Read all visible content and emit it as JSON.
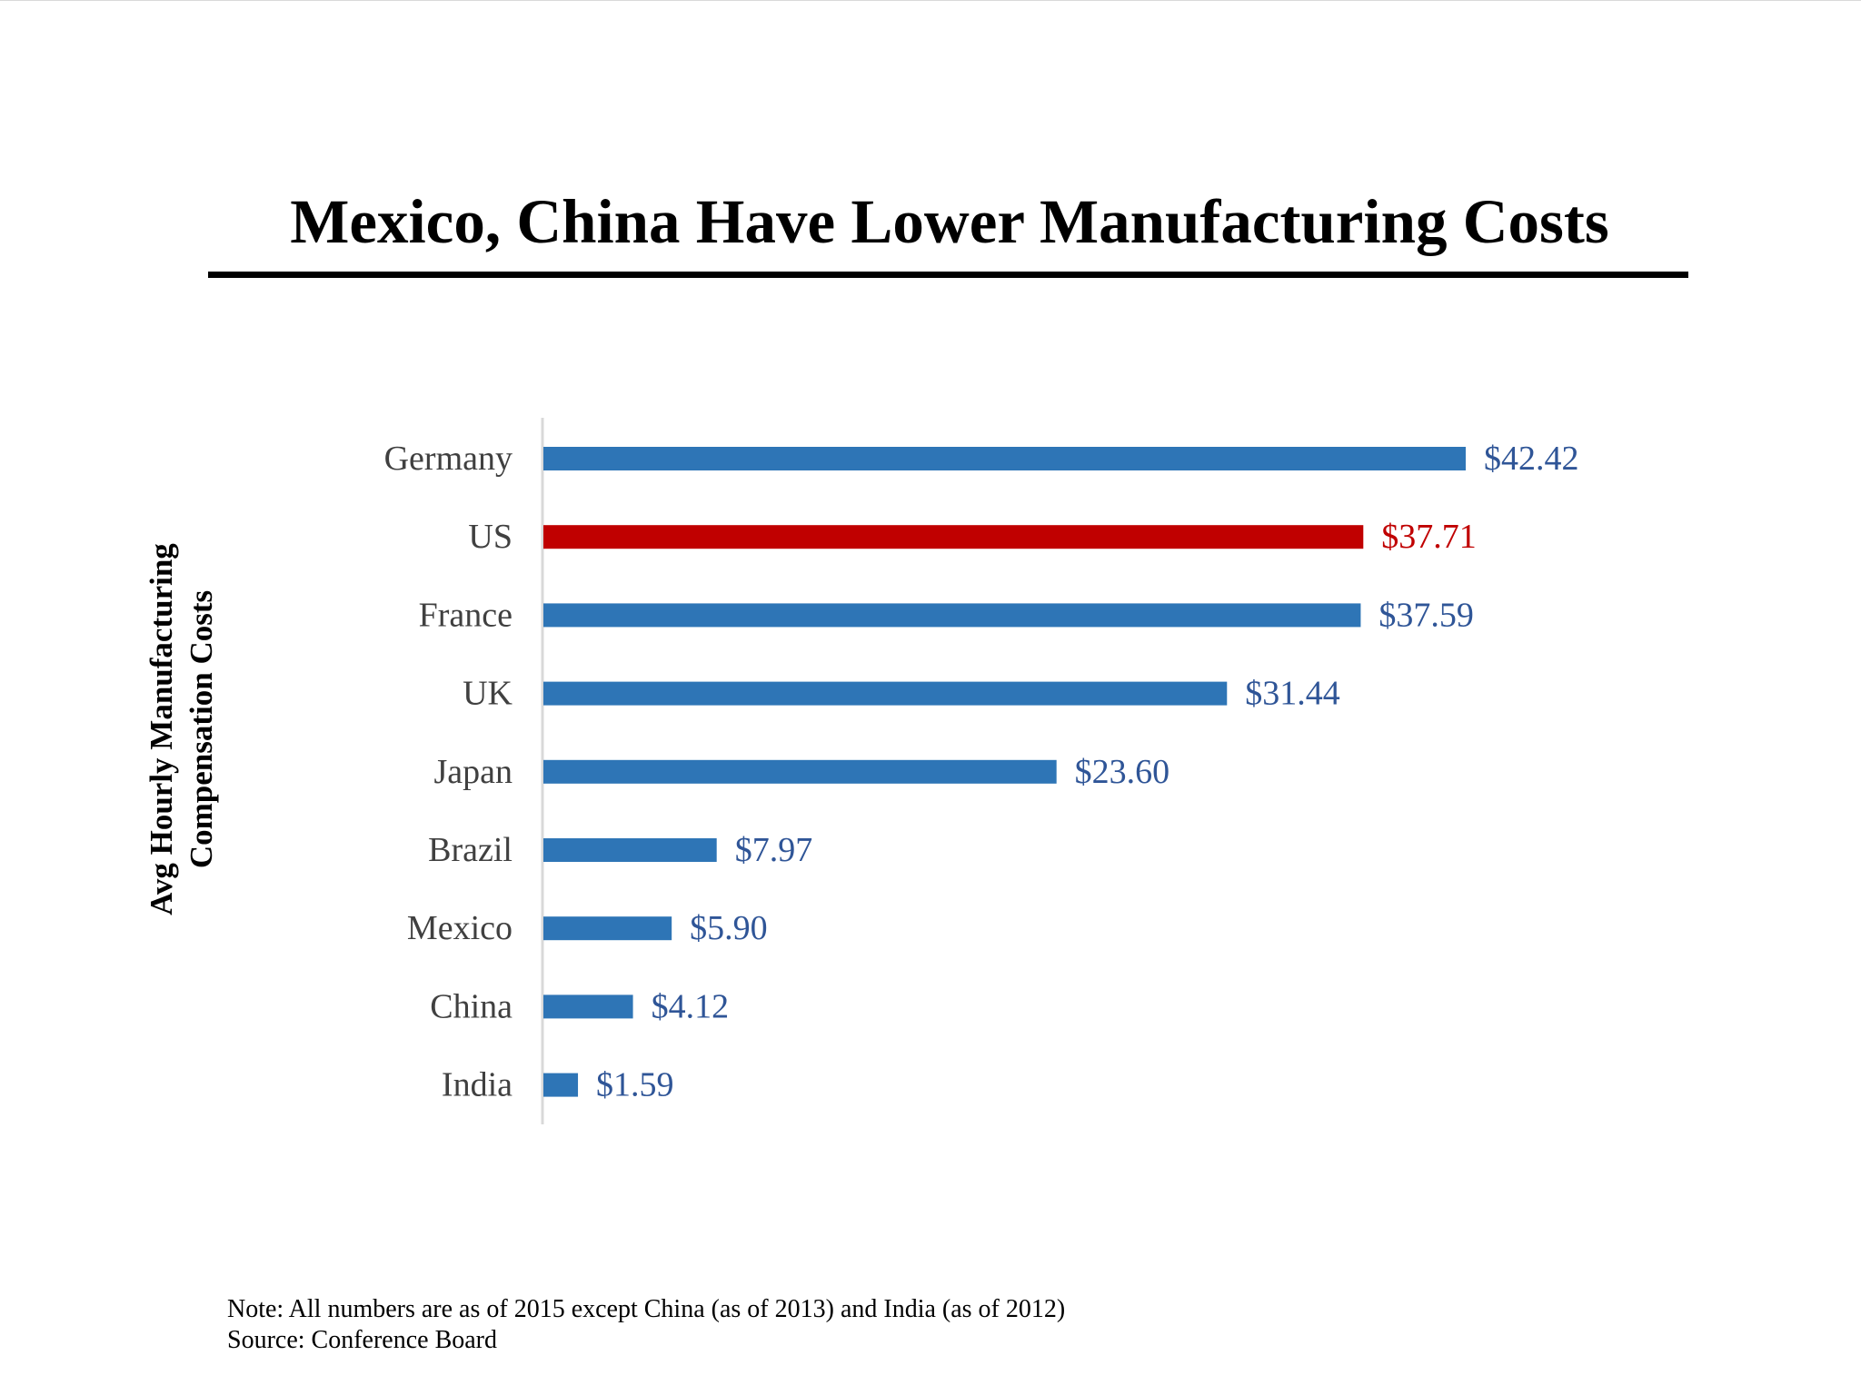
{
  "title": "Mexico, China Have Lower Manufacturing Costs",
  "chart_data": {
    "type": "bar",
    "orientation": "horizontal",
    "ylabel_lines": [
      "Avg Hourly Manufacturing",
      "Compensation Costs"
    ],
    "categories": [
      "Germany",
      "US",
      "France",
      "UK",
      "Japan",
      "Brazil",
      "Mexico",
      "China",
      "India"
    ],
    "values": [
      42.42,
      37.71,
      37.59,
      31.44,
      23.6,
      7.97,
      5.9,
      4.12,
      1.59
    ],
    "data_labels": [
      "$42.42",
      "$37.71",
      "$37.59",
      "$31.44",
      "$23.60",
      "$7.97",
      "$5.90",
      "$4.12",
      "$1.59"
    ],
    "highlight_category": "US",
    "colors": {
      "default_bar": "#2E75B6",
      "highlight_bar": "#C00000",
      "default_label": "#2F5597",
      "highlight_label": "#C00000",
      "category_label": "#404040",
      "axis": "#D9D9D9"
    },
    "xlim": [
      0,
      42.42
    ],
    "grid": false,
    "legend": "none"
  },
  "footnotes": {
    "note": "Note: All numbers are as of 2015 except China (as of 2013) and India (as of 2012)",
    "source": "Source: Conference Board"
  }
}
